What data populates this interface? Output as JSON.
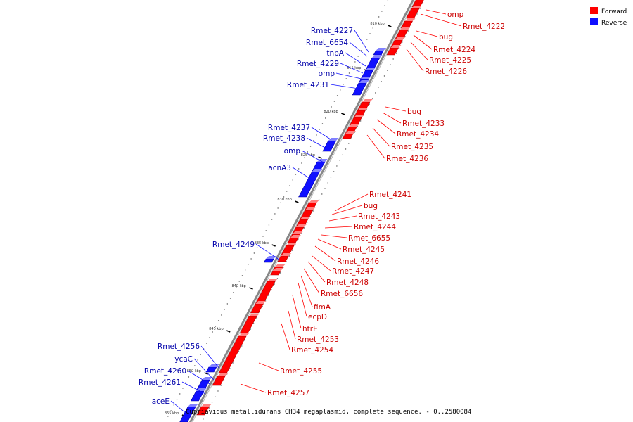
{
  "legend": {
    "forward_label": "Forward",
    "reverse_label": "Reverse",
    "forward_color": "#ff0000",
    "reverse_color": "#1010ff"
  },
  "caption": "Cupriavidus metallidurans CH34 megaplasmid, complete sequence. - 0..2580084",
  "ticks": [
    "810 kbp",
    "815 kbp",
    "820 kbp",
    "825 kbp",
    "830 kbp",
    "835 kbp",
    "840 kbp",
    "845 kbp",
    "850 kbp",
    "855 kbp"
  ],
  "forward_genes": [
    "omp",
    "Rmet_4222",
    "bug",
    "Rmet_4224",
    "Rmet_4225",
    "Rmet_4226",
    "bug",
    "Rmet_4233",
    "Rmet_4234",
    "Rmet_4235",
    "Rmet_4236",
    "Rmet_4241",
    "bug",
    "Rmet_4243",
    "Rmet_4244",
    "Rmet_6655",
    "Rmet_4245",
    "Rmet_4246",
    "Rmet_4247",
    "Rmet_4248",
    "Rmet_6656",
    "fimA",
    "ecpD",
    "htrE",
    "Rmet_4253",
    "Rmet_4254",
    "Rmet_4255",
    "Rmet_4257"
  ],
  "reverse_genes": [
    "Rmet_4227",
    "Rmet_6654",
    "tnpA",
    "Rmet_4229",
    "omp",
    "Rmet_4231",
    "Rmet_4237",
    "Rmet_4238",
    "omp",
    "acnA3",
    "Rmet_4249",
    "Rmet_4256",
    "ycaC",
    "Rmet_4260",
    "Rmet_4261",
    "aceE"
  ]
}
